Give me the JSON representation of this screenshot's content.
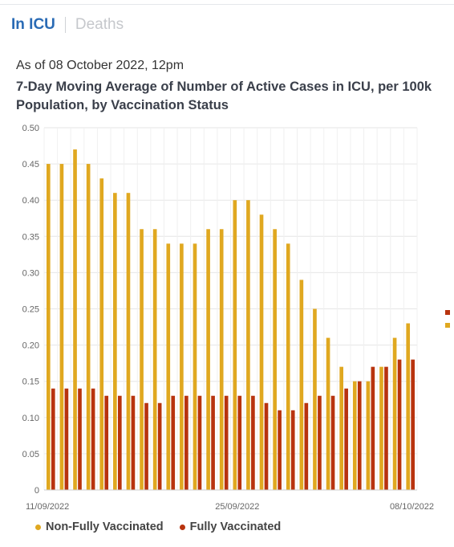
{
  "tabs": {
    "active": "In ICU",
    "inactive": "Deaths"
  },
  "as_of": "As of 08 October 2022, 12pm",
  "title": "7-Day Moving Average of Number of Active Cases in ICU, per 100k Population, by Vaccination Status",
  "colors": {
    "non_fully": "#e0a820",
    "fully": "#b8330e",
    "grid": "#e6e6e6"
  },
  "chart_data": {
    "type": "bar",
    "title": "7-Day Moving Average of Number of Active Cases in ICU, per 100k Population, by Vaccination Status",
    "xlabel": "",
    "ylabel": "",
    "ylim": [
      0,
      0.5
    ],
    "y_ticks": [
      "0",
      "0.05",
      "0.10",
      "0.15",
      "0.20",
      "0.25",
      "0.30",
      "0.35",
      "0.40",
      "0.45",
      "0.50"
    ],
    "x_tick_labels": [
      {
        "label": "11/09/2022",
        "index": 0
      },
      {
        "label": "25/09/2022",
        "index": 14
      },
      {
        "label": "08/10/2022",
        "index": 27
      }
    ],
    "categories": [
      "11/09/2022",
      "12/09/2022",
      "13/09/2022",
      "14/09/2022",
      "15/09/2022",
      "16/09/2022",
      "17/09/2022",
      "18/09/2022",
      "19/09/2022",
      "20/09/2022",
      "21/09/2022",
      "22/09/2022",
      "23/09/2022",
      "24/09/2022",
      "25/09/2022",
      "26/09/2022",
      "27/09/2022",
      "28/09/2022",
      "29/09/2022",
      "30/09/2022",
      "01/10/2022",
      "02/10/2022",
      "03/10/2022",
      "04/10/2022",
      "05/10/2022",
      "06/10/2022",
      "07/10/2022",
      "08/10/2022"
    ],
    "series": [
      {
        "name": "Non-Fully Vaccinated",
        "values": [
          0.45,
          0.45,
          0.47,
          0.45,
          0.43,
          0.41,
          0.41,
          0.36,
          0.36,
          0.34,
          0.34,
          0.34,
          0.36,
          0.36,
          0.4,
          0.4,
          0.38,
          0.36,
          0.34,
          0.29,
          0.25,
          0.21,
          0.17,
          0.15,
          0.15,
          0.17,
          0.21,
          0.23
        ]
      },
      {
        "name": "Fully Vaccinated",
        "values": [
          0.14,
          0.14,
          0.14,
          0.14,
          0.13,
          0.13,
          0.13,
          0.12,
          0.12,
          0.13,
          0.13,
          0.13,
          0.13,
          0.13,
          0.13,
          0.13,
          0.12,
          0.11,
          0.11,
          0.12,
          0.13,
          0.13,
          0.14,
          0.15,
          0.17,
          0.17,
          0.18,
          0.18
        ]
      }
    ],
    "grid": true,
    "legend_position": "bottom"
  }
}
